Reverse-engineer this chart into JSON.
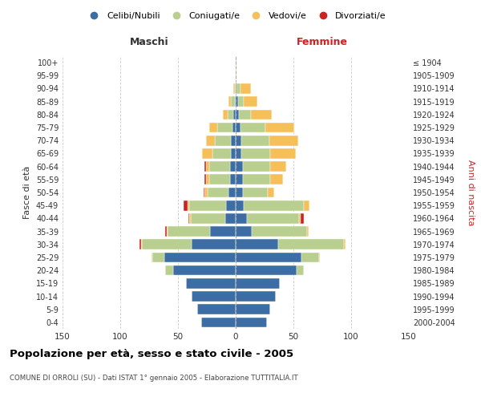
{
  "age_groups": [
    "0-4",
    "5-9",
    "10-14",
    "15-19",
    "20-24",
    "25-29",
    "30-34",
    "35-39",
    "40-44",
    "45-49",
    "50-54",
    "55-59",
    "60-64",
    "65-69",
    "70-74",
    "75-79",
    "80-84",
    "85-89",
    "90-94",
    "95-99",
    "100+"
  ],
  "birth_years": [
    "2000-2004",
    "1995-1999",
    "1990-1994",
    "1985-1989",
    "1980-1984",
    "1975-1979",
    "1970-1974",
    "1965-1969",
    "1960-1964",
    "1955-1959",
    "1950-1954",
    "1945-1949",
    "1940-1944",
    "1935-1939",
    "1930-1934",
    "1925-1929",
    "1920-1924",
    "1915-1919",
    "1910-1914",
    "1905-1909",
    "≤ 1904"
  ],
  "maschi_celibi": [
    30,
    33,
    38,
    43,
    54,
    62,
    38,
    22,
    9,
    8,
    6,
    5,
    5,
    4,
    4,
    3,
    2,
    1,
    0,
    0,
    0
  ],
  "maschi_coniugati": [
    0,
    0,
    0,
    0,
    7,
    10,
    43,
    37,
    30,
    32,
    18,
    18,
    18,
    16,
    14,
    13,
    5,
    3,
    1,
    0,
    0
  ],
  "maschi_vedovi": [
    0,
    0,
    0,
    0,
    0,
    1,
    1,
    1,
    1,
    2,
    3,
    3,
    3,
    9,
    8,
    7,
    4,
    2,
    1,
    0,
    0
  ],
  "maschi_divorziati": [
    0,
    0,
    0,
    0,
    0,
    0,
    1,
    1,
    1,
    3,
    1,
    1,
    1,
    0,
    0,
    0,
    0,
    0,
    0,
    0,
    0
  ],
  "femmine_celibi": [
    27,
    30,
    35,
    38,
    53,
    57,
    37,
    14,
    10,
    7,
    6,
    6,
    6,
    5,
    5,
    4,
    3,
    2,
    1,
    0,
    0
  ],
  "femmine_coniugati": [
    0,
    0,
    0,
    0,
    6,
    15,
    57,
    48,
    45,
    52,
    22,
    24,
    24,
    25,
    24,
    22,
    10,
    5,
    3,
    0,
    0
  ],
  "femmine_vedovi": [
    0,
    0,
    0,
    0,
    0,
    1,
    1,
    1,
    1,
    5,
    5,
    11,
    14,
    22,
    25,
    25,
    18,
    12,
    9,
    1,
    1
  ],
  "femmine_divorziati": [
    0,
    0,
    0,
    0,
    0,
    0,
    0,
    0,
    3,
    0,
    0,
    0,
    0,
    0,
    0,
    0,
    0,
    0,
    0,
    0,
    0
  ],
  "color_celibi": "#3c6ea5",
  "color_coniugati": "#b8cf8f",
  "color_vedovi": "#f5c05a",
  "color_divorziati": "#cc2222",
  "title": "Popolazione per età, sesso e stato civile - 2005",
  "subtitle": "COMUNE DI ORROLI (SU) - Dati ISTAT 1° gennaio 2005 - Elaborazione TUTTITALIA.IT",
  "xlabel_left": "Maschi",
  "xlabel_right": "Femmine",
  "ylabel_left": "Fasce di età",
  "ylabel_right": "Anni di nascita",
  "xlim": 150,
  "background_color": "#ffffff",
  "grid_color": "#cccccc"
}
